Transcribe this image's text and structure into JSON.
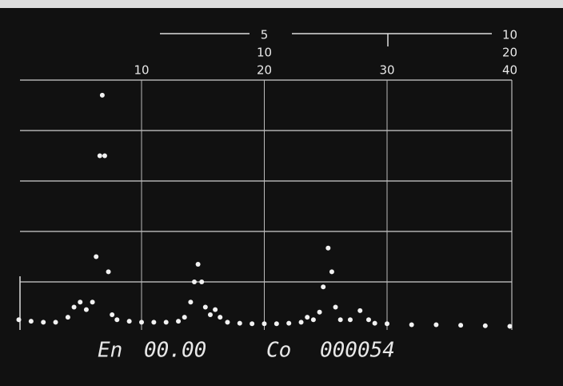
{
  "chart_data": {
    "type": "scatter",
    "x": [
      0,
      1,
      2,
      3,
      4,
      4.5,
      5,
      5.5,
      6,
      6.3,
      6.6,
      6.8,
      7,
      7.3,
      7.6,
      8,
      9,
      10,
      11,
      12,
      13,
      13.5,
      14,
      14.3,
      14.6,
      14.9,
      15.2,
      15.6,
      16,
      16.4,
      17,
      18,
      19,
      20,
      21,
      22,
      23,
      23.5,
      24,
      24.5,
      24.8,
      25.2,
      25.5,
      25.8,
      26.2,
      27,
      27.8,
      28.5,
      29,
      30,
      32,
      34,
      36,
      38,
      40
    ],
    "values": [
      0.25,
      0.22,
      0.2,
      0.2,
      0.3,
      0.5,
      0.6,
      0.45,
      0.6,
      1.5,
      3.5,
      4.7,
      3.5,
      1.2,
      0.35,
      0.25,
      0.22,
      0.2,
      0.2,
      0.2,
      0.22,
      0.3,
      0.6,
      1.0,
      1.35,
      1.0,
      0.5,
      0.35,
      0.45,
      0.3,
      0.2,
      0.18,
      0.17,
      0.17,
      0.17,
      0.18,
      0.2,
      0.3,
      0.25,
      0.4,
      0.9,
      1.67,
      1.2,
      0.5,
      0.25,
      0.25,
      0.43,
      0.25,
      0.18,
      0.17,
      0.15,
      0.15,
      0.14,
      0.13,
      0.12
    ],
    "color": "#f2f2f2",
    "xlim": [
      0,
      40
    ],
    "xticks": [
      10,
      20,
      30,
      40
    ],
    "x2lim": [
      0,
      10
    ],
    "x2ticks": [
      5,
      10
    ],
    "x3lim": [
      0,
      20
    ],
    "x3ticks": [
      10,
      20
    ],
    "ylim": [
      0,
      5
    ],
    "ygrid": [
      1,
      2,
      3,
      4,
      5
    ],
    "readout": {
      "energy_label": "En",
      "energy": "00.00",
      "counts_label": "Co",
      "counts": "000054"
    }
  }
}
